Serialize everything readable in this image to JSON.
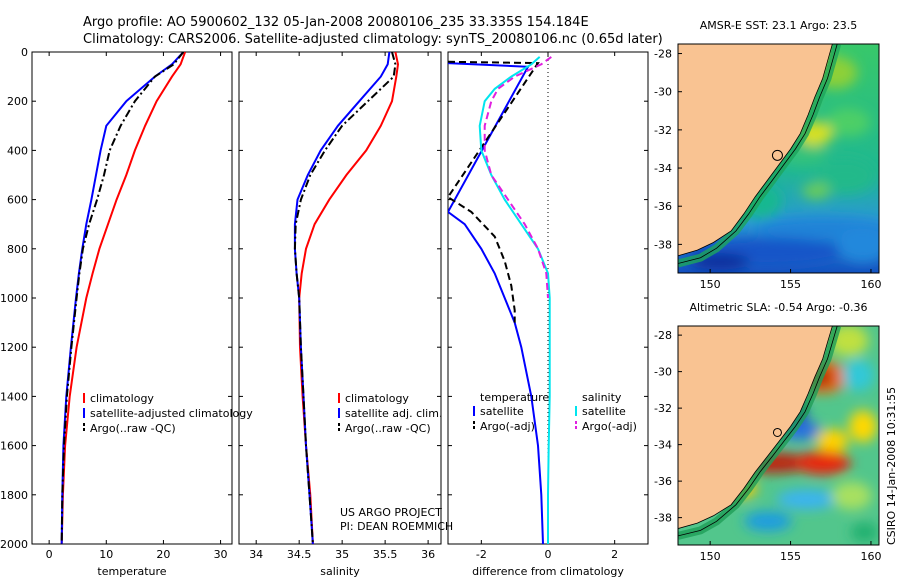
{
  "header": {
    "line1": "Argo profile: AO 5900602_132 05-Jan-2008 20080106_235 33.335S 154.184E",
    "line2": "Climatology: CARS2006. Satellite-adjusted climatology: synTS_20080106.nc (0.65d later)"
  },
  "colors": {
    "climatology": "#ff0000",
    "satellite": "#0000ff",
    "argo": "#000000",
    "salinity_satellite": "#00e5ee",
    "salinity_argo": "#e020e0",
    "land": "#f9c392"
  },
  "chart_data": [
    {
      "type": "line",
      "id": "temperature",
      "xlabel": "temperature",
      "ylabel": "",
      "xlim": [
        -3,
        32
      ],
      "ylim": [
        2000,
        0
      ],
      "xticks": [
        "0",
        "10",
        "20",
        "30"
      ],
      "yticks": [
        "0",
        "200",
        "400",
        "600",
        "800",
        "1000",
        "1200",
        "1400",
        "1600",
        "1800",
        "2000"
      ],
      "depth": [
        0,
        50,
        100,
        200,
        300,
        400,
        500,
        600,
        700,
        800,
        900,
        1000,
        1200,
        1400,
        1600,
        1800,
        2000
      ],
      "series": [
        {
          "name": "climatology",
          "key": "climatology",
          "style": "solid",
          "values": [
            23.8,
            23.0,
            21.5,
            18.8,
            16.8,
            15.0,
            13.5,
            11.8,
            10.3,
            8.8,
            7.6,
            6.5,
            4.8,
            3.6,
            2.8,
            2.4,
            2.2
          ]
        },
        {
          "name": "satellite-adjusted climatology",
          "key": "satellite",
          "style": "solid",
          "values": [
            23.5,
            21.5,
            18.5,
            13.5,
            10.0,
            9.0,
            8.2,
            7.4,
            6.5,
            5.8,
            5.2,
            4.7,
            3.8,
            3.0,
            2.5,
            2.3,
            2.2
          ]
        },
        {
          "name": "Argo(..raw -QC)",
          "key": "argo",
          "style": "dashdot",
          "values": [
            23.5,
            21.8,
            18.5,
            15.0,
            12.5,
            10.6,
            9.6,
            8.4,
            7.0,
            5.9,
            5.3,
            4.8,
            3.9,
            3.1,
            2.6,
            2.3,
            2.2
          ]
        }
      ],
      "legend": {
        "placement": "lower-right",
        "items": [
          "climatology",
          "satellite-adjusted climatology",
          "Argo(..raw -QC)"
        ]
      }
    },
    {
      "type": "line",
      "id": "salinity",
      "xlabel": "salinity",
      "xlim": [
        33.8,
        36.15
      ],
      "ylim": [
        2000,
        0
      ],
      "xticks": [
        "34",
        "34.5",
        "35",
        "35.5",
        "36"
      ],
      "depth": [
        0,
        50,
        100,
        200,
        300,
        400,
        500,
        600,
        700,
        800,
        900,
        1000,
        1200,
        1400,
        1600,
        1800,
        2000
      ],
      "series": [
        {
          "name": "climatology",
          "key": "climatology",
          "style": "solid",
          "values": [
            35.62,
            35.65,
            35.63,
            35.58,
            35.45,
            35.28,
            35.05,
            34.85,
            34.68,
            34.58,
            34.53,
            34.5,
            34.51,
            34.54,
            34.58,
            34.63,
            34.66
          ]
        },
        {
          "name": "satellite adj. clim.",
          "key": "satellite",
          "style": "solid",
          "values": [
            35.55,
            35.53,
            35.45,
            35.2,
            34.95,
            34.75,
            34.6,
            34.48,
            34.45,
            34.45,
            34.47,
            34.5,
            34.52,
            34.55,
            34.58,
            34.62,
            34.66
          ]
        },
        {
          "name": "Argo(..raw -QC)",
          "key": "argo",
          "style": "dashdot",
          "values": [
            35.58,
            35.62,
            35.6,
            35.3,
            35.0,
            34.8,
            34.63,
            34.52,
            34.46,
            34.45,
            34.47,
            34.5,
            34.52,
            34.55,
            34.58,
            34.62,
            34.66
          ]
        }
      ],
      "legend": {
        "placement": "lower-right",
        "items": [
          "climatology",
          "satellite adj. clim.",
          "Argo(..raw -QC)"
        ]
      }
    },
    {
      "type": "line",
      "id": "difference",
      "xlabel": "difference from climatology",
      "xlim": [
        -3,
        3
      ],
      "ylim": [
        2000,
        0
      ],
      "xticks": [
        "-2",
        "0",
        "2"
      ],
      "reference_line_x": 0,
      "series": [
        {
          "name": "temperature satellite",
          "key": "satellite",
          "style": "solid",
          "depth": [
            45,
            60,
            650,
            700,
            800,
            900,
            1000,
            1100,
            1200,
            1400,
            1600,
            1800,
            2000
          ],
          "values": [
            -3.0,
            -0.6,
            -3.0,
            -2.5,
            -2.0,
            -1.6,
            -1.3,
            -1.0,
            -0.8,
            -0.5,
            -0.3,
            -0.2,
            -0.15
          ]
        },
        {
          "name": "temperature Argo(-adj)",
          "key": "argo",
          "style": "dashed",
          "depth": [
            40,
            45,
            590,
            650,
            750,
            850,
            950,
            1050,
            1100
          ],
          "values": [
            -3.0,
            -0.3,
            -3.0,
            -2.3,
            -1.6,
            -1.3,
            -1.1,
            -1.0,
            -1.0
          ]
        },
        {
          "name": "salinity satellite",
          "key": "salinity_satellite",
          "style": "solid",
          "depth": [
            20,
            50,
            100,
            150,
            200,
            300,
            400,
            500,
            600,
            700,
            800,
            900,
            1000,
            1200,
            1400,
            1600,
            1800,
            2000
          ],
          "values": [
            -0.25,
            -0.5,
            -1.1,
            -1.6,
            -1.9,
            -2.05,
            -2.0,
            -1.7,
            -1.3,
            -0.8,
            -0.3,
            0.0,
            0.05,
            0.05,
            0.05,
            0.02,
            0.0,
            0.0
          ]
        },
        {
          "name": "salinity Argo(-adj)",
          "key": "salinity_argo",
          "style": "dashed",
          "depth": [
            20,
            50,
            100,
            150,
            200,
            300,
            400,
            500,
            600,
            700,
            800,
            900,
            1000
          ],
          "values": [
            0.1,
            -0.2,
            -1.0,
            -1.5,
            -1.7,
            -1.9,
            -1.9,
            -1.7,
            -1.2,
            -0.7,
            -0.3,
            -0.05,
            0.0
          ]
        }
      ],
      "legend": {
        "temperature_title": "temperature",
        "salinity_title": "salinity",
        "temperature_items": [
          "satellite",
          "Argo(-adj)"
        ],
        "salinity_items": [
          "satellite",
          "Argo(-adj)"
        ]
      }
    },
    {
      "type": "heatmap",
      "id": "sst_map",
      "title": "AMSR-E SST: 23.1 Argo: 23.5",
      "xlim": [
        148,
        160.5
      ],
      "ylim": [
        -39.5,
        -27.5
      ],
      "xticks": [
        "150",
        "155",
        "160"
      ],
      "yticks": [
        "-28",
        "-30",
        "-32",
        "-34",
        "-36",
        "-38"
      ],
      "float_position": {
        "lon": 154.184,
        "lat": -33.335
      }
    },
    {
      "type": "heatmap",
      "id": "sla_map",
      "title": "Altimetric SLA: -0.54 Argo: -0.36",
      "xlim": [
        148,
        160.5
      ],
      "ylim": [
        -39.5,
        -27.5
      ],
      "xticks": [
        "150",
        "155",
        "160"
      ],
      "yticks": [
        "-28",
        "-30",
        "-32",
        "-34",
        "-36",
        "-38"
      ],
      "float_position": {
        "lon": 154.184,
        "lat": -33.335
      }
    }
  ],
  "credits": {
    "project": "US ARGO PROJECT",
    "pi": "PI: DEAN ROEMMICH",
    "side_stamp": "CSIRO 14-Jan-2008 10:31:55"
  }
}
